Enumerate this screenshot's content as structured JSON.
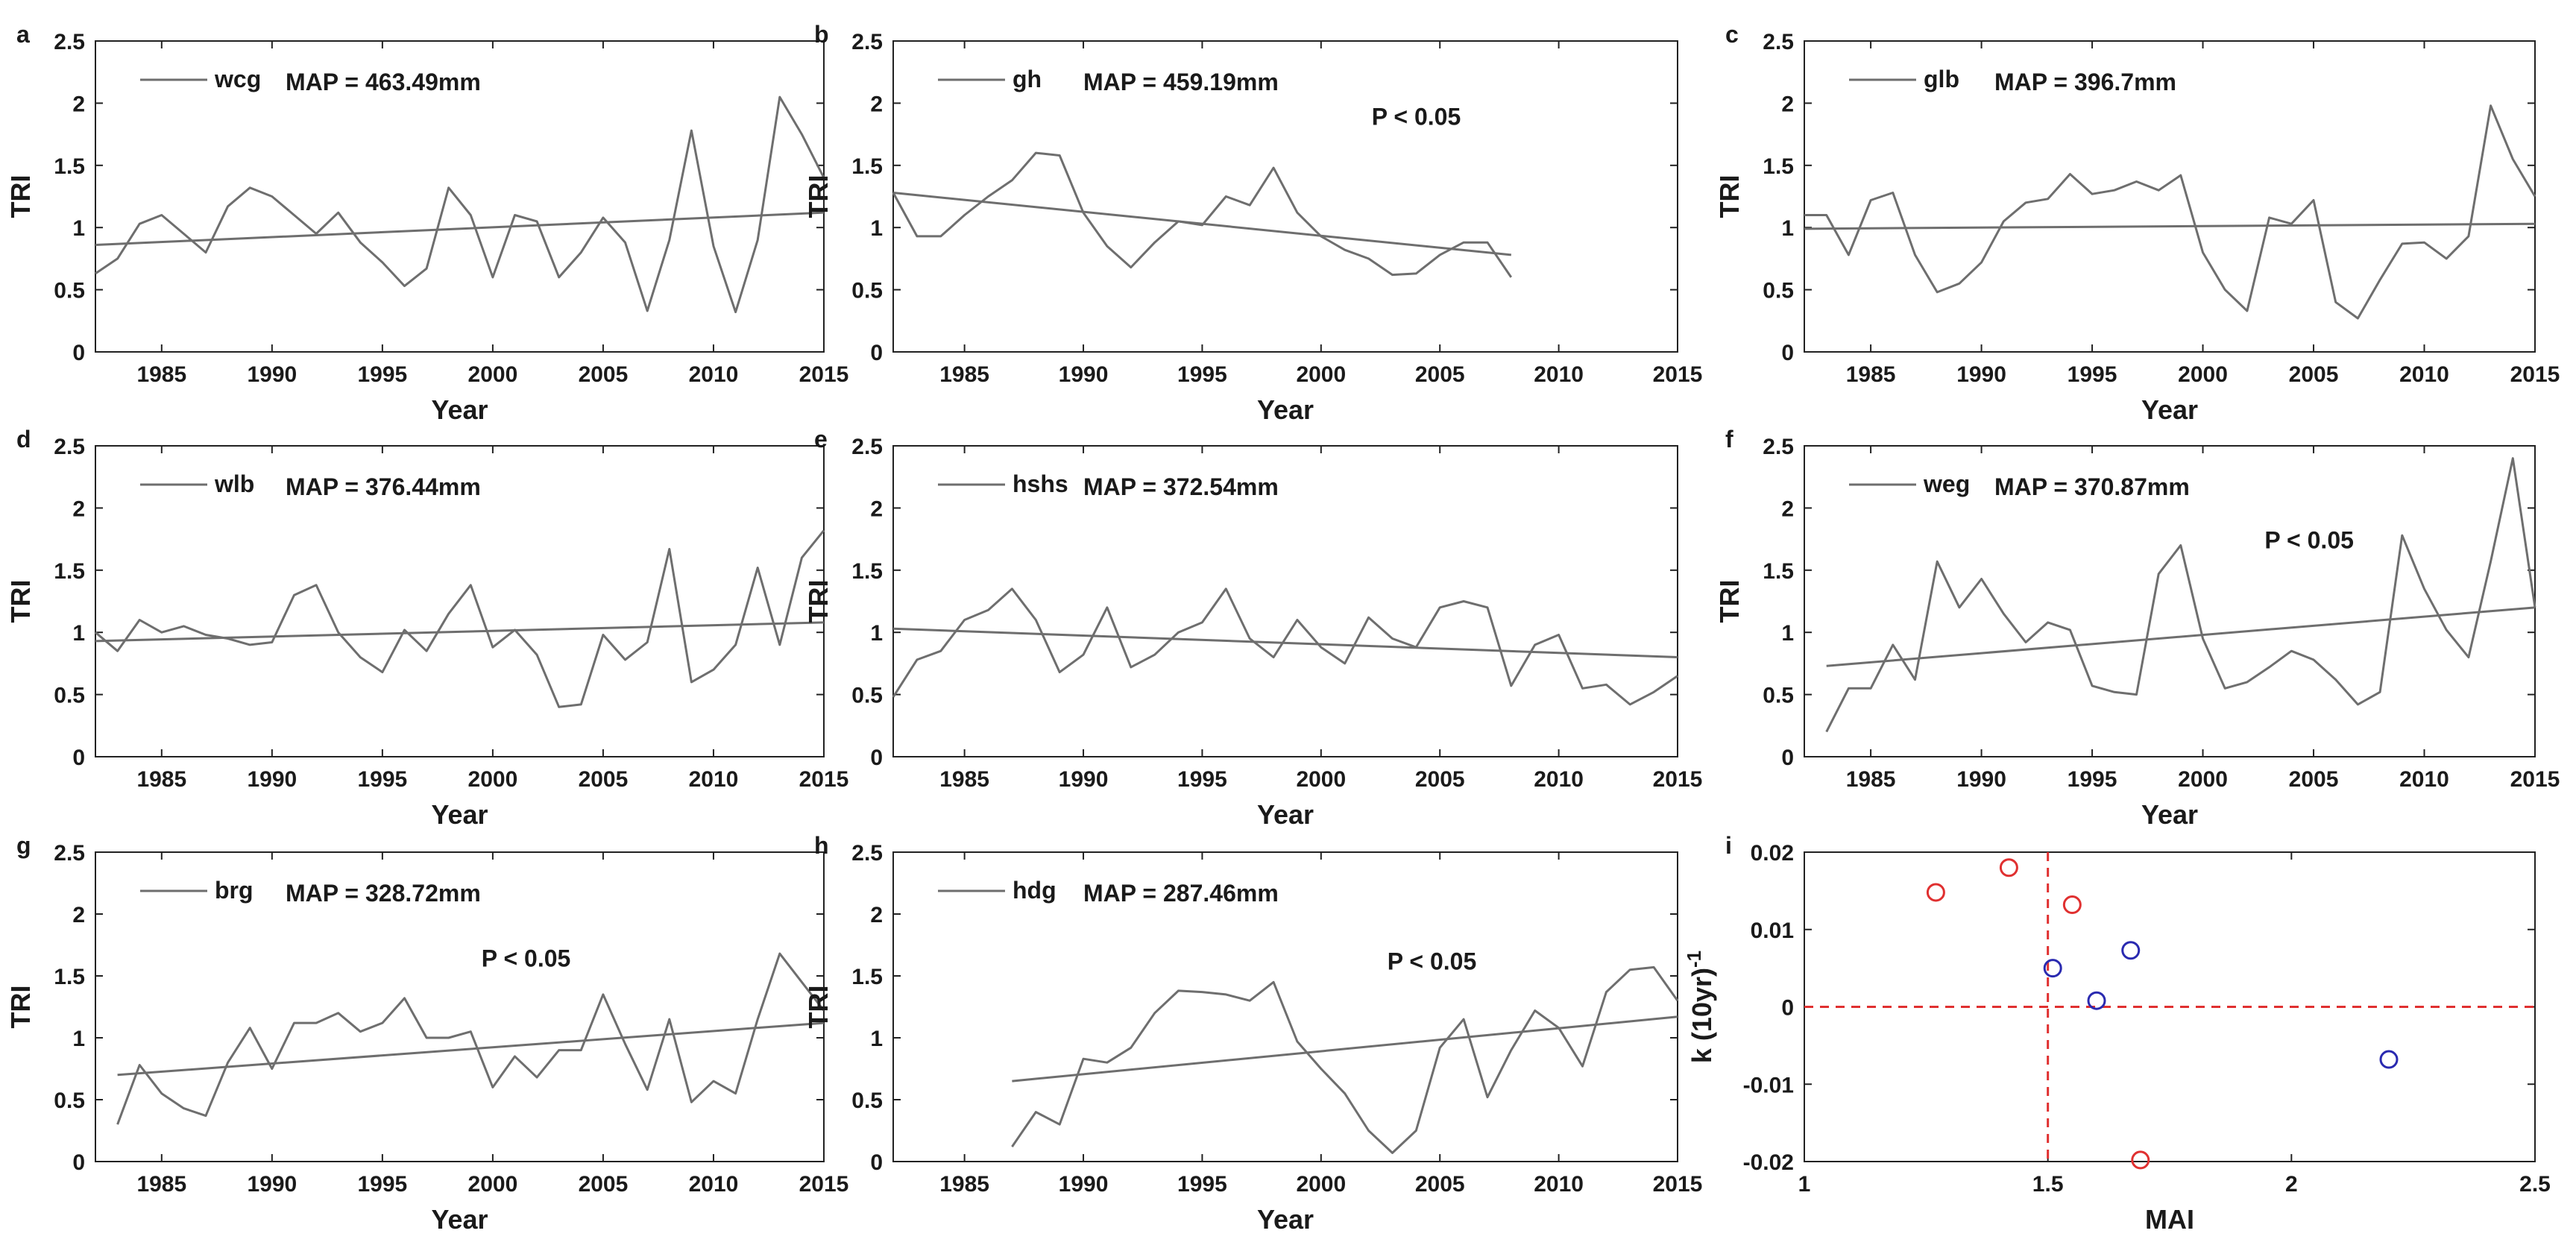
{
  "chart_data": [
    {
      "type": "line",
      "panel": "a",
      "station": "wcg",
      "map_text": "MAP = 463.49mm",
      "p_text": "",
      "xlabel": "Year",
      "ylabel": "TRI",
      "xlim": [
        1982,
        2015
      ],
      "ylim": [
        0,
        2.5
      ],
      "xticks": [
        "1985",
        "1990",
        "1995",
        "2000",
        "2005",
        "2010",
        "2015"
      ],
      "yticks": [
        "0",
        "0.5",
        "1",
        "1.5",
        "2",
        "2.5"
      ],
      "x": [
        1982,
        1983,
        1984,
        1985,
        1986,
        1987,
        1988,
        1989,
        1990,
        1991,
        1992,
        1993,
        1994,
        1995,
        1996,
        1997,
        1998,
        1999,
        2000,
        2001,
        2002,
        2003,
        2004,
        2005,
        2006,
        2007,
        2008,
        2009,
        2010,
        2011,
        2012,
        2013,
        2014,
        2015
      ],
      "values": [
        0.63,
        0.75,
        1.03,
        1.1,
        0.95,
        0.8,
        1.17,
        1.32,
        1.25,
        1.1,
        0.95,
        1.12,
        0.88,
        0.72,
        0.53,
        0.67,
        1.32,
        1.1,
        0.6,
        1.1,
        1.05,
        0.6,
        0.8,
        1.08,
        0.88,
        0.33,
        0.9,
        1.78,
        0.85,
        0.32,
        0.9,
        2.05,
        1.75,
        1.4
      ],
      "trend": [
        [
          1982,
          0.86
        ],
        [
          2015,
          1.12
        ]
      ]
    },
    {
      "type": "line",
      "panel": "b",
      "station": "gh",
      "map_text": "MAP = 459.19mm",
      "p_text": "P < 0.05",
      "xlabel": "Year",
      "ylabel": "TRI",
      "xlim": [
        1982,
        2015
      ],
      "ylim": [
        0,
        2.5
      ],
      "xticks": [
        "1985",
        "1990",
        "1995",
        "2000",
        "2005",
        "2010",
        "2015"
      ],
      "yticks": [
        "0",
        "0.5",
        "1",
        "1.5",
        "2",
        "2.5"
      ],
      "x": [
        1982,
        1983,
        1984,
        1985,
        1986,
        1987,
        1988,
        1989,
        1990,
        1991,
        1992,
        1993,
        1994,
        1995,
        1996,
        1997,
        1998,
        1999,
        2000,
        2001,
        2002,
        2003,
        2004,
        2005,
        2006,
        2007,
        2008
      ],
      "values": [
        1.28,
        0.93,
        0.93,
        1.1,
        1.25,
        1.38,
        1.6,
        1.58,
        1.12,
        0.85,
        0.68,
        0.88,
        1.05,
        1.02,
        1.25,
        1.18,
        1.48,
        1.12,
        0.93,
        0.82,
        0.75,
        0.62,
        0.63,
        0.78,
        0.88,
        0.88,
        0.6
      ],
      "trend": [
        [
          1982,
          1.28
        ],
        [
          2008,
          0.78
        ]
      ]
    },
    {
      "type": "line",
      "panel": "c",
      "station": "glb",
      "map_text": "MAP = 396.7mm",
      "p_text": "",
      "xlabel": "Year",
      "ylabel": "TRI",
      "xlim": [
        1982,
        2015
      ],
      "ylim": [
        0,
        2.5
      ],
      "xticks": [
        "1985",
        "1990",
        "1995",
        "2000",
        "2005",
        "2010",
        "2015"
      ],
      "yticks": [
        "0",
        "0.5",
        "1",
        "1.5",
        "2",
        "2.5"
      ],
      "x": [
        1982,
        1983,
        1984,
        1985,
        1986,
        1987,
        1988,
        1989,
        1990,
        1991,
        1992,
        1993,
        1994,
        1995,
        1996,
        1997,
        1998,
        1999,
        2000,
        2001,
        2002,
        2003,
        2004,
        2005,
        2006,
        2007,
        2008,
        2009,
        2010,
        2011,
        2012,
        2013,
        2014,
        2015
      ],
      "values": [
        1.1,
        1.1,
        0.78,
        1.22,
        1.28,
        0.78,
        0.48,
        0.55,
        0.72,
        1.05,
        1.2,
        1.23,
        1.43,
        1.27,
        1.3,
        1.37,
        1.3,
        1.42,
        0.8,
        0.5,
        0.33,
        1.08,
        1.03,
        1.22,
        0.4,
        0.27,
        0.58,
        0.87,
        0.88,
        0.75,
        0.93,
        1.98,
        1.55,
        1.25
      ],
      "trend": [
        [
          1982,
          0.99
        ],
        [
          2015,
          1.03
        ]
      ]
    },
    {
      "type": "line",
      "panel": "d",
      "station": "wlb",
      "map_text": "MAP = 376.44mm",
      "p_text": "",
      "xlabel": "Year",
      "ylabel": "TRI",
      "xlim": [
        1982,
        2015
      ],
      "ylim": [
        0,
        2.5
      ],
      "xticks": [
        "1985",
        "1990",
        "1995",
        "2000",
        "2005",
        "2010",
        "2015"
      ],
      "yticks": [
        "0",
        "0.5",
        "1",
        "1.5",
        "2",
        "2.5"
      ],
      "x": [
        1982,
        1983,
        1984,
        1985,
        1986,
        1987,
        1988,
        1989,
        1990,
        1991,
        1992,
        1993,
        1994,
        1995,
        1996,
        1997,
        1998,
        1999,
        2000,
        2001,
        2002,
        2003,
        2004,
        2005,
        2006,
        2007,
        2008,
        2009,
        2010,
        2011,
        2012,
        2013,
        2014,
        2015
      ],
      "values": [
        1.0,
        0.85,
        1.1,
        1.0,
        1.05,
        0.98,
        0.95,
        0.9,
        0.92,
        1.3,
        1.38,
        1.0,
        0.8,
        0.68,
        1.02,
        0.85,
        1.15,
        1.38,
        0.88,
        1.02,
        0.82,
        0.4,
        0.42,
        0.98,
        0.78,
        0.92,
        1.67,
        0.6,
        0.7,
        0.9,
        1.52,
        0.9,
        1.6,
        1.82
      ],
      "trend": [
        [
          1982,
          0.93
        ],
        [
          2015,
          1.08
        ]
      ]
    },
    {
      "type": "line",
      "panel": "e",
      "station": "hshs",
      "map_text": "MAP = 372.54mm",
      "p_text": "",
      "xlabel": "Year",
      "ylabel": "TRI",
      "xlim": [
        1982,
        2015
      ],
      "ylim": [
        0,
        2.5
      ],
      "xticks": [
        "1985",
        "1990",
        "1995",
        "2000",
        "2005",
        "2010",
        "2015"
      ],
      "yticks": [
        "0",
        "0.5",
        "1",
        "1.5",
        "2",
        "2.5"
      ],
      "x": [
        1982,
        1983,
        1984,
        1985,
        1986,
        1987,
        1988,
        1989,
        1990,
        1991,
        1992,
        1993,
        1994,
        1995,
        1996,
        1997,
        1998,
        1999,
        2000,
        2001,
        2002,
        2003,
        2004,
        2005,
        2006,
        2007,
        2008,
        2009,
        2010,
        2011,
        2012,
        2013,
        2014,
        2015
      ],
      "values": [
        0.48,
        0.78,
        0.85,
        1.1,
        1.18,
        1.35,
        1.1,
        0.68,
        0.82,
        1.2,
        0.72,
        0.82,
        1.0,
        1.08,
        1.35,
        0.95,
        0.8,
        1.1,
        0.88,
        0.75,
        1.12,
        0.95,
        0.88,
        1.2,
        1.25,
        1.2,
        0.57,
        0.9,
        0.98,
        0.55,
        0.58,
        0.42,
        0.52,
        0.65
      ],
      "trend": [
        [
          1982,
          1.03
        ],
        [
          2015,
          0.8
        ]
      ]
    },
    {
      "type": "line",
      "panel": "f",
      "station": "weg",
      "map_text": "MAP = 370.87mm",
      "p_text": "P < 0.05",
      "xlabel": "Year",
      "ylabel": "TRI",
      "xlim": [
        1982,
        2015
      ],
      "ylim": [
        0,
        2.5
      ],
      "xticks": [
        "1985",
        "1990",
        "1995",
        "2000",
        "2005",
        "2010",
        "2015"
      ],
      "yticks": [
        "0",
        "0.5",
        "1",
        "1.5",
        "2",
        "2.5"
      ],
      "x": [
        1983,
        1984,
        1985,
        1986,
        1987,
        1988,
        1989,
        1990,
        1991,
        1992,
        1993,
        1994,
        1995,
        1996,
        1997,
        1998,
        1999,
        2000,
        2001,
        2002,
        2003,
        2004,
        2005,
        2006,
        2007,
        2008,
        2009,
        2010,
        2011,
        2012,
        2013,
        2014,
        2015
      ],
      "values": [
        0.2,
        0.55,
        0.55,
        0.9,
        0.62,
        1.57,
        1.2,
        1.43,
        1.15,
        0.92,
        1.08,
        1.02,
        0.57,
        0.52,
        0.5,
        1.47,
        1.7,
        0.95,
        0.55,
        0.6,
        0.72,
        0.85,
        0.78,
        0.62,
        0.42,
        0.52,
        1.78,
        1.35,
        1.02,
        0.8,
        1.57,
        2.4,
        1.2
      ],
      "trend": [
        [
          1983,
          0.73
        ],
        [
          2015,
          1.2
        ]
      ]
    },
    {
      "type": "line",
      "panel": "g",
      "station": "brg",
      "map_text": "MAP = 328.72mm",
      "p_text": "P < 0.05",
      "xlabel": "Year",
      "ylabel": "TRI",
      "xlim": [
        1982,
        2015
      ],
      "ylim": [
        0,
        2.5
      ],
      "xticks": [
        "1985",
        "1990",
        "1995",
        "2000",
        "2005",
        "2010",
        "2015"
      ],
      "yticks": [
        "0",
        "0.5",
        "1",
        "1.5",
        "2",
        "2.5"
      ],
      "x": [
        1983,
        1984,
        1985,
        1986,
        1987,
        1988,
        1989,
        1990,
        1991,
        1992,
        1993,
        1994,
        1995,
        1996,
        1997,
        1998,
        1999,
        2000,
        2001,
        2002,
        2003,
        2004,
        2005,
        2006,
        2007,
        2008,
        2009,
        2010,
        2011,
        2012,
        2013,
        2014,
        2015
      ],
      "values": [
        0.3,
        0.78,
        0.55,
        0.43,
        0.37,
        0.8,
        1.08,
        0.75,
        1.12,
        1.12,
        1.2,
        1.05,
        1.12,
        1.32,
        1.0,
        1.0,
        1.05,
        0.6,
        0.85,
        0.68,
        0.9,
        0.9,
        1.35,
        0.95,
        0.58,
        1.15,
        0.48,
        0.65,
        0.55,
        1.15,
        1.68,
        1.45,
        1.22
      ],
      "trend": [
        [
          1983,
          0.7
        ],
        [
          2015,
          1.12
        ]
      ]
    },
    {
      "type": "line",
      "panel": "h",
      "station": "hdg",
      "map_text": "MAP = 287.46mm",
      "p_text": "P < 0.05",
      "xlabel": "Year",
      "ylabel": "TRI",
      "xlim": [
        1982,
        2015
      ],
      "ylim": [
        0,
        2.5
      ],
      "xticks": [
        "1985",
        "1990",
        "1995",
        "2000",
        "2005",
        "2010",
        "2015"
      ],
      "yticks": [
        "0",
        "0.5",
        "1",
        "1.5",
        "2",
        "2.5"
      ],
      "x": [
        1987,
        1988,
        1989,
        1990,
        1991,
        1992,
        1993,
        1994,
        1995,
        1996,
        1997,
        1998,
        1999,
        2000,
        2001,
        2002,
        2003,
        2004,
        2005,
        2006,
        2007,
        2008,
        2009,
        2010,
        2011,
        2012,
        2013,
        2014,
        2015
      ],
      "values": [
        0.12,
        0.4,
        0.3,
        0.83,
        0.8,
        0.92,
        1.2,
        1.38,
        1.37,
        1.35,
        1.3,
        1.45,
        0.97,
        0.75,
        0.55,
        0.25,
        0.07,
        0.25,
        0.92,
        1.15,
        0.52,
        0.9,
        1.22,
        1.08,
        0.77,
        1.37,
        1.55,
        1.57,
        1.3
      ],
      "trend": [
        [
          1987,
          0.65
        ],
        [
          2015,
          1.17
        ]
      ]
    },
    {
      "type": "scatter",
      "panel": "i",
      "xlabel": "MAI",
      "ylabel": "k (10yr)",
      "ylabel_sup": "-1",
      "xlim": [
        1,
        2.5
      ],
      "ylim": [
        -0.02,
        0.02
      ],
      "xticks": [
        "1",
        "1.5",
        "2",
        "2.5"
      ],
      "yticks": [
        "-0.02",
        "-0.01",
        "0",
        "0.01",
        "0.02"
      ],
      "series": [
        {
          "name": "red",
          "color": "#e03030",
          "points": [
            [
              1.27,
              0.0148
            ],
            [
              1.42,
              0.018
            ],
            [
              1.55,
              0.0132
            ],
            [
              1.69,
              -0.0198
            ]
          ]
        },
        {
          "name": "blue",
          "color": "#2a2ab0",
          "points": [
            [
              1.51,
              0.005
            ],
            [
              1.67,
              0.0073
            ],
            [
              1.6,
              0.0008
            ],
            [
              2.2,
              -0.0068
            ]
          ]
        }
      ],
      "reference_lines": {
        "x": 1.5,
        "y": 0,
        "color": "#e03030"
      }
    }
  ]
}
